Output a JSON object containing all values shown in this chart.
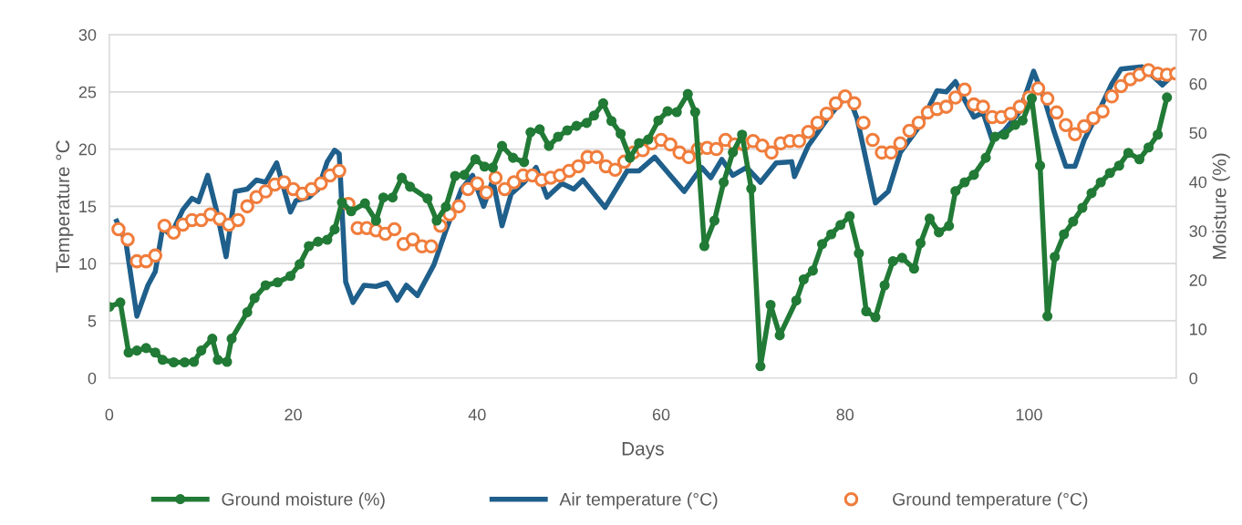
{
  "chart_data": {
    "type": "line",
    "xlabel": "Days",
    "ylabel": "Temperature °C",
    "y2label": "Moisture (%)",
    "xlim": [
      0,
      116
    ],
    "xticks": [
      0,
      20,
      40,
      60,
      80,
      100
    ],
    "ylim": [
      0,
      30
    ],
    "yticks": [
      0,
      5,
      10,
      15,
      20,
      25,
      30
    ],
    "y2lim": [
      0,
      70
    ],
    "y2ticks": [
      0,
      10,
      20,
      30,
      40,
      50,
      60,
      70
    ],
    "grid": "y",
    "legend": "bottom",
    "series": [
      {
        "name": "Ground moisture (%)",
        "color": "#217a35",
        "axis": "y2",
        "marker": "circle",
        "line_style": "solid",
        "x": [
          0,
          1.2,
          2.1,
          3,
          4,
          5,
          5.8,
          7,
          8.2,
          9.2,
          10,
          11.2,
          11.8,
          12.8,
          13.3,
          15,
          15.8,
          17,
          18.3,
          19.7,
          20.7,
          21.7,
          22.7,
          23.7,
          24.5,
          25.3,
          26.3,
          27.8,
          29,
          29.8,
          30.8,
          31.8,
          32.7,
          34.6,
          35.6,
          36.6,
          37.6,
          38.6,
          39.8,
          40.8,
          41.7,
          42.7,
          43.9,
          45.1,
          45.8,
          46.8,
          47.8,
          48.8,
          49.8,
          50.8,
          51.9,
          52.7,
          53.7,
          54.6,
          55.6,
          56.6,
          57.6,
          58.6,
          59.7,
          60.7,
          61.7,
          62.9,
          63.7,
          64.7,
          65.8,
          66.8,
          67.8,
          68.8,
          69.8,
          70.8,
          71.9,
          72.9,
          74.7,
          75.5,
          76.5,
          77.5,
          78.5,
          79.5,
          80.5,
          81.5,
          82.3,
          83.3,
          84.3,
          85.2,
          86.2,
          87.5,
          88.2,
          89.2,
          90.2,
          91.3,
          92,
          93,
          94,
          95.3,
          96.3,
          97.3,
          98.5,
          99.3,
          100.3,
          101.2,
          102,
          102.8,
          103.8,
          104.8,
          105.8,
          106.8,
          107.8,
          108.8,
          109.8,
          110.8,
          112,
          113,
          114,
          115
        ],
        "values": [
          14.5,
          15.4,
          5.2,
          5.6,
          6.1,
          5.2,
          3.7,
          3.2,
          3.2,
          3.3,
          5.6,
          8.0,
          3.7,
          3.3,
          8.0,
          13.4,
          16.3,
          18.9,
          19.5,
          20.8,
          23.2,
          26.9,
          27.8,
          28.2,
          30.3,
          35.8,
          34.0,
          35.6,
          32.1,
          36.8,
          36.8,
          40.8,
          39.0,
          36.6,
          32.1,
          34.9,
          41.2,
          41.4,
          44.6,
          43.1,
          42.9,
          47.3,
          44.9,
          44.0,
          50.1,
          50.7,
          47.3,
          49.2,
          50.5,
          51.4,
          52.0,
          53.5,
          56.0,
          52.4,
          49.8,
          44.9,
          47.9,
          48.6,
          52.5,
          54.4,
          54.2,
          57.9,
          54.2,
          26.9,
          32.1,
          39.9,
          46.0,
          49.6,
          38.6,
          2.4,
          14.9,
          8.7,
          15.8,
          20.1,
          21.9,
          27.3,
          29.3,
          31.2,
          33.0,
          25.4,
          13.6,
          12.4,
          18.9,
          23.8,
          24.5,
          22.3,
          27.5,
          32.5,
          29.7,
          31.0,
          38.1,
          39.9,
          41.4,
          44.9,
          49.2,
          49.6,
          51.6,
          52.5,
          57.0,
          43.3,
          12.6,
          24.7,
          29.3,
          31.9,
          34.7,
          37.7,
          39.9,
          41.8,
          43.3,
          45.9,
          44.6,
          47.0,
          49.6,
          57.2
        ]
      },
      {
        "name": "Air temperature (°C)",
        "color": "#1f5f8b",
        "marker": "none",
        "line_style": "solid",
        "x": [
          0.8,
          1.8,
          3,
          4.2,
          5,
          5.8,
          6.7,
          8,
          9,
          9.7,
          10.7,
          11.7,
          12.7,
          13.7,
          15,
          16,
          17,
          18.2,
          19.7,
          20.3,
          21.7,
          22.7,
          23.7,
          24.5,
          25,
          25.7,
          26.5,
          27.7,
          29,
          30.2,
          31.3,
          32.3,
          33.5,
          35.3,
          36.6,
          38.3,
          39.5,
          40.7,
          41.7,
          42.7,
          43.7,
          45.1,
          46.4,
          47.6,
          49.2,
          50.5,
          51.5,
          53.9,
          56.3,
          57.6,
          59.3,
          61,
          62.5,
          64.4,
          65.4,
          66.6,
          67.8,
          69.3,
          70.8,
          72.5,
          74.2,
          74.5,
          76,
          78.3,
          80.3,
          81.3,
          83.3,
          84.7,
          86,
          88,
          90,
          91,
          92,
          93,
          94,
          95,
          96,
          97.3,
          99,
          100.5,
          101.7,
          102.7,
          104,
          105,
          106,
          107.7,
          109,
          110,
          112.3,
          113.3,
          114.5,
          115.3
        ],
        "values": [
          13.7,
          11.9,
          5.4,
          8.1,
          9.3,
          13.1,
          12.5,
          14.7,
          15.7,
          15.4,
          17.7,
          14.5,
          10.6,
          16.3,
          16.5,
          17.3,
          17.1,
          18.8,
          14.5,
          15.5,
          15.8,
          16.5,
          18.9,
          19.9,
          19.6,
          8.4,
          6.6,
          8.1,
          8.0,
          8.3,
          6.8,
          8.1,
          7.2,
          9.9,
          12.9,
          16.5,
          17.7,
          15.0,
          17.3,
          13.3,
          16.1,
          17.1,
          18.4,
          15.8,
          17.0,
          16.5,
          17.3,
          14.9,
          18.1,
          18.1,
          19.3,
          17.7,
          16.3,
          18.4,
          17.5,
          19.1,
          17.7,
          18.4,
          17.1,
          18.8,
          18.9,
          17.6,
          20.3,
          22.9,
          24.8,
          22.7,
          15.3,
          16.3,
          19.7,
          21.9,
          25.1,
          25.0,
          25.9,
          24.3,
          22.8,
          23.2,
          20.8,
          21.6,
          23.3,
          26.8,
          24.3,
          21.6,
          18.5,
          18.5,
          20.8,
          23.5,
          25.7,
          27.0,
          27.2,
          26.5,
          25.6,
          26.2
        ]
      },
      {
        "name": "Ground temperature (°C)",
        "color": "#f07d3c",
        "type": "scatter",
        "marker": "circle",
        "x": [
          1,
          2,
          3,
          4,
          5,
          6,
          7,
          8,
          9,
          10,
          11,
          12,
          13,
          14,
          15,
          16,
          17,
          18,
          19,
          20,
          21,
          22,
          23,
          24,
          25,
          26,
          27,
          28,
          29,
          30,
          31,
          32,
          33,
          34,
          35,
          36,
          37,
          38,
          39,
          40,
          41,
          42,
          43,
          44,
          45,
          46,
          47,
          48,
          49,
          50,
          51,
          52,
          53,
          54,
          55,
          56,
          57,
          58,
          59,
          60,
          61,
          62,
          63,
          64,
          65,
          66,
          67,
          68,
          69,
          70,
          71,
          72,
          73,
          74,
          75,
          76,
          77,
          78,
          79,
          80,
          81,
          82,
          83,
          84,
          85,
          86,
          87,
          88,
          89,
          90,
          91,
          92,
          93,
          94,
          95,
          96,
          97,
          98,
          99,
          100,
          101,
          102,
          103,
          104,
          105,
          106,
          107,
          108,
          109,
          110,
          111,
          112,
          113,
          114,
          115,
          116
        ],
        "values": [
          13.0,
          12.1,
          10.2,
          10.2,
          10.7,
          13.3,
          12.7,
          13.4,
          13.8,
          13.8,
          14.3,
          13.9,
          13.4,
          13.8,
          15.0,
          15.8,
          16.3,
          16.9,
          17.1,
          16.5,
          16.1,
          16.5,
          17.0,
          17.7,
          18.1,
          15.2,
          13.1,
          13.1,
          12.9,
          12.6,
          13.0,
          11.7,
          12.1,
          11.5,
          11.5,
          13.3,
          14.3,
          15.0,
          16.5,
          17.0,
          16.2,
          17.5,
          16.5,
          17.1,
          17.7,
          17.7,
          17.3,
          17.5,
          17.7,
          18.1,
          18.5,
          19.3,
          19.3,
          18.5,
          18.2,
          18.9,
          19.7,
          19.9,
          20.5,
          20.8,
          20.4,
          19.7,
          19.3,
          20.0,
          20.1,
          20.0,
          20.8,
          20.4,
          20.4,
          20.7,
          20.3,
          19.7,
          20.5,
          20.7,
          20.7,
          21.5,
          22.3,
          23.1,
          24.0,
          24.6,
          24.0,
          22.3,
          20.8,
          19.7,
          19.7,
          20.5,
          21.6,
          22.3,
          23.2,
          23.5,
          23.7,
          24.5,
          25.2,
          23.9,
          23.7,
          22.8,
          22.8,
          23.1,
          23.7,
          24.5,
          25.3,
          24.4,
          23.2,
          22.1,
          21.3,
          22.0,
          22.7,
          23.3,
          24.6,
          25.5,
          26.1,
          26.5,
          26.9,
          26.6,
          26.5,
          26.6
        ]
      }
    ]
  }
}
